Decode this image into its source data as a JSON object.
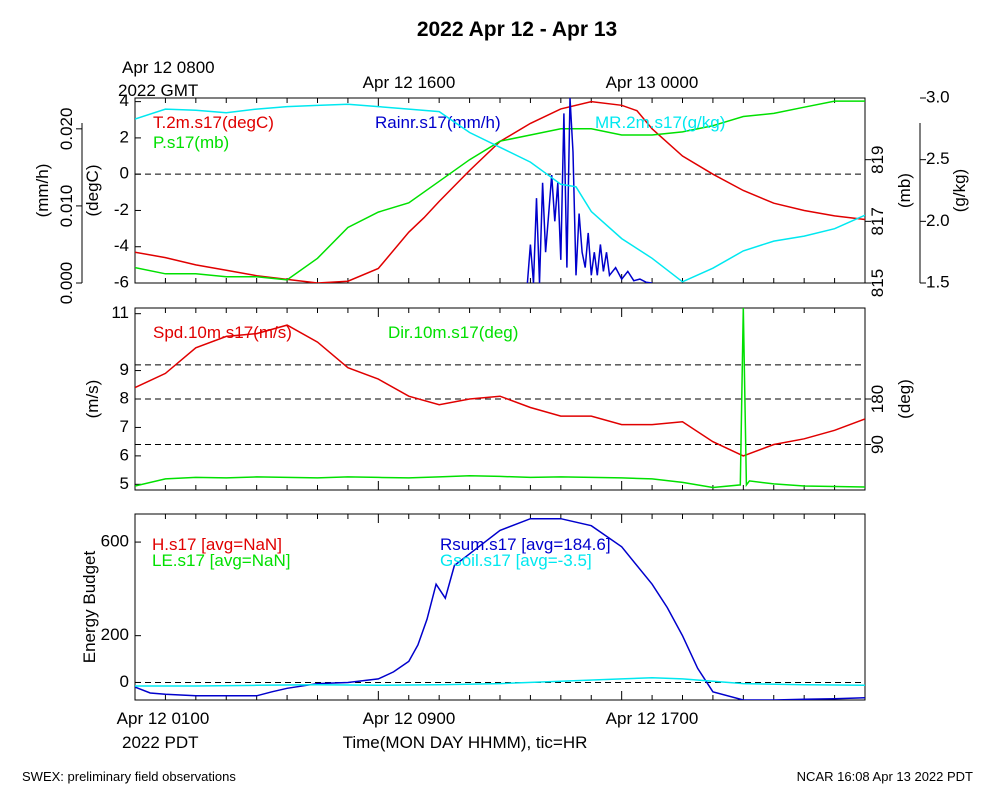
{
  "title": "2022 Apr 12 - Apr 13",
  "gmt_label": {
    "line1": "Apr 12 0800",
    "line2": "2022 GMT"
  },
  "top_time_labels": [
    "Apr 12 1600",
    "Apr 13 0000"
  ],
  "pdt_label": "2022 PDT",
  "bottom_time_labels": [
    "Apr 12 0100",
    "Apr 12 0900",
    "Apr 12 1700"
  ],
  "xlabel": "Time(MON DAY HHMM), tic=HR",
  "footer": {
    "left": "SWEX: preliminary field observations",
    "right": "NCAR 16:08 Apr 13 2022 PDT"
  },
  "colors": {
    "red": "#e00000",
    "green": "#00e000",
    "blue": "#0000cc",
    "cyan": "#00e8f0"
  },
  "chart_data": [
    {
      "type": "line",
      "panel": "top",
      "x_unit": "hours since Apr 12 0100 PDT",
      "xlim": [
        0,
        24
      ],
      "axes": {
        "left_outer": {
          "label": "(mm/h)",
          "ticks": [
            "0.000",
            "0.010",
            "0.020"
          ],
          "lim": [
            0,
            0.024
          ]
        },
        "left_inner": {
          "label": "(degC)",
          "ticks": [
            "-6",
            "-4",
            "-2",
            "0",
            "2",
            "4"
          ],
          "lim": [
            -6,
            4.2
          ]
        },
        "right_inner": {
          "label": "(mb)",
          "ticks": [
            "815",
            "817",
            "819"
          ],
          "lim": [
            815,
            821
          ]
        },
        "right_outer": {
          "label": "(g/kg)",
          "ticks": [
            "1.5",
            "2.0",
            "2.5",
            "3.0"
          ],
          "lim": [
            1.5,
            3.0
          ]
        }
      },
      "ref_lines": [
        {
          "axis": "left_inner",
          "value": 0
        }
      ],
      "series": [
        {
          "name": "T.2m.s17(degC)",
          "color": "red",
          "axis": "left_inner",
          "x": [
            0,
            1,
            2,
            3,
            4,
            5,
            6,
            7,
            8,
            9,
            9.5,
            10,
            11,
            12,
            13,
            14,
            15,
            16,
            16.5,
            17,
            18,
            19,
            20,
            21,
            22,
            23,
            24
          ],
          "y": [
            -4.3,
            -4.6,
            -5.0,
            -5.3,
            -5.6,
            -5.8,
            -6.0,
            -5.9,
            -5.2,
            -3.2,
            -2.4,
            -1.5,
            0.2,
            1.8,
            2.8,
            3.6,
            4.0,
            3.8,
            3.5,
            2.5,
            1.0,
            0.0,
            -0.9,
            -1.6,
            -2.0,
            -2.3,
            -2.5
          ]
        },
        {
          "name": "P.s17(mb)",
          "color": "green",
          "axis": "right_inner",
          "x": [
            0,
            1,
            2,
            3,
            4,
            5,
            6,
            7,
            8,
            9,
            10,
            11,
            12,
            13,
            14,
            15,
            16,
            17,
            18,
            19,
            20,
            21,
            22,
            23,
            24
          ],
          "y": [
            815.5,
            815.3,
            815.3,
            815.2,
            815.2,
            815.1,
            815.8,
            816.8,
            817.3,
            817.6,
            818.3,
            819.0,
            819.6,
            819.8,
            820.0,
            820.0,
            819.8,
            819.8,
            819.9,
            820.1,
            820.4,
            820.5,
            820.7,
            820.9,
            820.9
          ]
        },
        {
          "name": "Rainr.s17(mm/h)",
          "color": "blue",
          "axis": "left_outer",
          "x": [
            12.9,
            13.0,
            13.1,
            13.2,
            13.3,
            13.4,
            13.5,
            13.6,
            13.7,
            13.8,
            13.9,
            14.0,
            14.1,
            14.2,
            14.3,
            14.4,
            14.5,
            14.6,
            14.7,
            14.8,
            14.9,
            15.0,
            15.1,
            15.2,
            15.3,
            15.4,
            15.5,
            15.6,
            15.8,
            16.0,
            16.2,
            16.4,
            16.6,
            16.8,
            17.0
          ],
          "y": [
            0,
            0.005,
            0,
            0.011,
            0,
            0.013,
            0.004,
            0.009,
            0.014,
            0.008,
            0.013,
            0.003,
            0.022,
            0.002,
            0.024,
            0.017,
            0.001,
            0.009,
            0.004,
            0.002,
            0.0065,
            0.001,
            0.004,
            0.001,
            0.005,
            0.0015,
            0.004,
            0.001,
            0.002,
            0.0005,
            0.0015,
            0.0003,
            0.0005,
            0.0001,
            0
          ]
        },
        {
          "name": "MR.2m.s17(g/kg)",
          "color": "cyan",
          "axis": "right_outer",
          "x": [
            0,
            1,
            2,
            3,
            4,
            5,
            6,
            7,
            8,
            9,
            10,
            11,
            12,
            13,
            13.5,
            14,
            14.5,
            15,
            16,
            17,
            18,
            19,
            20,
            21,
            22,
            23,
            24
          ],
          "y": [
            2.83,
            2.91,
            2.9,
            2.88,
            2.91,
            2.93,
            2.94,
            2.95,
            2.93,
            2.91,
            2.89,
            2.72,
            2.6,
            2.48,
            2.39,
            2.3,
            2.28,
            2.08,
            1.86,
            1.7,
            1.51,
            1.62,
            1.76,
            1.84,
            1.88,
            1.94,
            2.05
          ]
        }
      ]
    },
    {
      "type": "line",
      "panel": "middle",
      "x_unit": "hours since Apr 12 0100 PDT",
      "xlim": [
        0,
        24
      ],
      "axes": {
        "left": {
          "label": "(m/s)",
          "ticks": [
            "5",
            "6",
            "7",
            "8",
            "9",
            "11"
          ],
          "lim": [
            4.8,
            11.2
          ]
        },
        "right": {
          "label": "(deg)",
          "ticks": [
            "90",
            "180"
          ],
          "lim": [
            0,
            360
          ]
        }
      },
      "ref_lines": [
        {
          "axis": "left",
          "value": 9.2
        },
        {
          "axis": "left",
          "value": 8.0
        },
        {
          "axis": "left",
          "value": 6.4
        }
      ],
      "series": [
        {
          "name": "Spd.10m.s17(m/s)",
          "color": "red",
          "axis": "left",
          "x": [
            0,
            1,
            2,
            3,
            4,
            5,
            6,
            7,
            8,
            9,
            10,
            11,
            12,
            13,
            14,
            15,
            16,
            17,
            18,
            19,
            20,
            21,
            22,
            23,
            24
          ],
          "y": [
            8.4,
            8.9,
            9.8,
            10.2,
            10.3,
            10.6,
            10.0,
            9.1,
            8.7,
            8.1,
            7.8,
            8.0,
            8.1,
            7.7,
            7.4,
            7.4,
            7.1,
            7.1,
            7.2,
            6.5,
            6.0,
            6.4,
            6.6,
            6.9,
            7.3
          ]
        },
        {
          "name": "Dir.10m.s17(deg)",
          "color": "green",
          "axis": "right",
          "x": [
            0,
            1,
            2,
            3,
            4,
            5,
            6,
            7,
            8,
            9,
            10,
            11,
            12,
            13,
            14,
            15,
            16,
            17,
            18,
            19,
            19.9,
            20.0,
            20.1,
            20.2,
            21,
            22,
            23,
            24
          ],
          "y": [
            8,
            22,
            25,
            24,
            26,
            25,
            24,
            26,
            25,
            24,
            26,
            28,
            27,
            25,
            26,
            25,
            24,
            22,
            15,
            5,
            10,
            360,
            10,
            18,
            12,
            8,
            7,
            6
          ]
        }
      ]
    },
    {
      "type": "line",
      "panel": "bottom",
      "x_unit": "hours since Apr 12 0100 PDT",
      "xlim": [
        0,
        24
      ],
      "axes": {
        "left": {
          "label": "Energy Budget",
          "ticks": [
            "0",
            "200",
            "600"
          ],
          "lim": [
            -75,
            720
          ]
        }
      },
      "ref_lines": [
        {
          "axis": "left",
          "value": 0
        }
      ],
      "series": [
        {
          "name": "H.s17 [avg=NaN]",
          "color": "red",
          "axis": "left",
          "x": [],
          "y": []
        },
        {
          "name": "LE.s17 [avg=NaN]",
          "color": "green",
          "axis": "left",
          "x": [],
          "y": []
        },
        {
          "name": "Rsum.s17 [avg=184.6]",
          "color": "blue",
          "axis": "left",
          "x": [
            0,
            0.5,
            1,
            2,
            3,
            4,
            4.5,
            5,
            6,
            7,
            8,
            8.5,
            9,
            9.3,
            9.6,
            9.9,
            10.2,
            10.5,
            11,
            12,
            13,
            14,
            15,
            16,
            17,
            17.5,
            18,
            18.5,
            19,
            20,
            21,
            22,
            23,
            24
          ],
          "y": [
            -20,
            -45,
            -50,
            -57,
            -57,
            -57,
            -40,
            -25,
            -5,
            0,
            15,
            45,
            90,
            160,
            270,
            420,
            360,
            500,
            550,
            650,
            700,
            700,
            670,
            580,
            420,
            320,
            200,
            60,
            -40,
            -75,
            -75,
            -72,
            -70,
            -65
          ]
        },
        {
          "name": "Gsoil.s17 [avg=-3.5]",
          "color": "cyan",
          "axis": "left",
          "x": [
            0,
            2,
            4,
            6,
            8,
            10,
            12,
            14,
            16,
            17,
            18,
            20,
            22,
            24
          ],
          "y": [
            -15,
            -15,
            -12,
            -10,
            -12,
            -10,
            -5,
            5,
            15,
            20,
            15,
            -5,
            -10,
            -12
          ]
        }
      ]
    }
  ]
}
